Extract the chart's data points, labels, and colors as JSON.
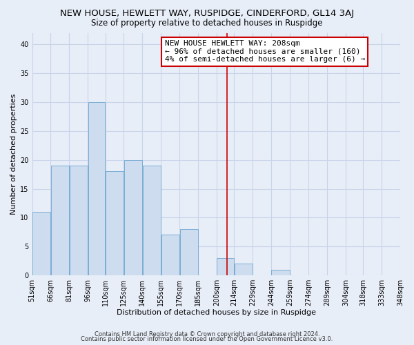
{
  "title": "NEW HOUSE, HEWLETT WAY, RUSPIDGE, CINDERFORD, GL14 3AJ",
  "subtitle": "Size of property relative to detached houses in Ruspidge",
  "xlabel": "Distribution of detached houses by size in Ruspidge",
  "ylabel": "Number of detached properties",
  "bar_left_edges": [
    51,
    66,
    81,
    96,
    110,
    125,
    140,
    155,
    170,
    185,
    200,
    214,
    229,
    244,
    259,
    274,
    289,
    304,
    318,
    333
  ],
  "bar_widths": [
    15,
    15,
    15,
    14,
    15,
    15,
    15,
    15,
    15,
    15,
    14,
    15,
    15,
    15,
    15,
    15,
    15,
    14,
    15,
    15
  ],
  "bar_heights": [
    11,
    19,
    19,
    30,
    18,
    20,
    19,
    7,
    8,
    0,
    3,
    2,
    0,
    1,
    0,
    0,
    0,
    0,
    0,
    0
  ],
  "tick_labels": [
    "51sqm",
    "66sqm",
    "81sqm",
    "96sqm",
    "110sqm",
    "125sqm",
    "140sqm",
    "155sqm",
    "170sqm",
    "185sqm",
    "200sqm",
    "214sqm",
    "229sqm",
    "244sqm",
    "259sqm",
    "274sqm",
    "289sqm",
    "304sqm",
    "318sqm",
    "333sqm",
    "348sqm"
  ],
  "bar_color": "#cddcee",
  "bar_edge_color": "#7aadd4",
  "property_line_x": 208,
  "property_line_color": "#cc0000",
  "annotation_line1": "NEW HOUSE HEWLETT WAY: 208sqm",
  "annotation_line2": "← 96% of detached houses are smaller (160)",
  "annotation_line3": "4% of semi-detached houses are larger (6) →",
  "ylim": [
    0,
    42
  ],
  "yticks": [
    0,
    5,
    10,
    15,
    20,
    25,
    30,
    35,
    40
  ],
  "grid_color": "#c8d4e8",
  "bg_color": "#e8eef8",
  "footer_line1": "Contains HM Land Registry data © Crown copyright and database right 2024.",
  "footer_line2": "Contains public sector information licensed under the Open Government Licence v3.0.",
  "title_fontsize": 9.5,
  "subtitle_fontsize": 8.5,
  "axis_label_fontsize": 8,
  "tick_fontsize": 7,
  "annotation_fontsize": 8,
  "footer_fontsize": 6
}
